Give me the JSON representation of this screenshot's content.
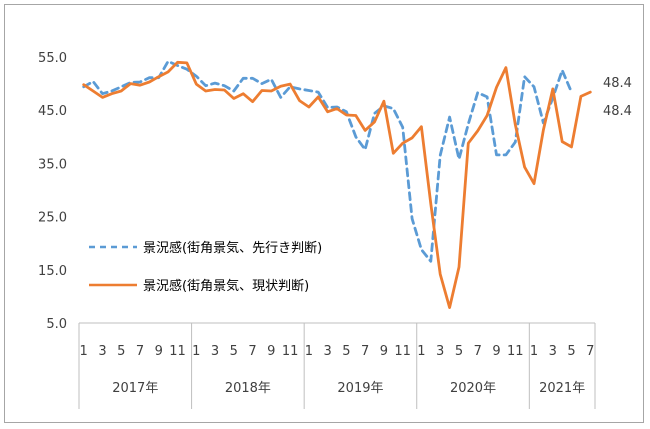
{
  "chart_data": {
    "type": "line",
    "title": "",
    "xlabel": "",
    "ylabel": "",
    "ylim": [
      5.0,
      55.0
    ],
    "yticks": [
      "5.0",
      "15.0",
      "25.0",
      "35.0",
      "45.0",
      "55.0"
    ],
    "grid": false,
    "legend_position": "lower-left",
    "x_month_labels": [
      "1",
      "3",
      "5",
      "7",
      "9",
      "11",
      "1",
      "3",
      "5",
      "7",
      "9",
      "11",
      "1",
      "3",
      "5",
      "7",
      "9",
      "11",
      "1",
      "3",
      "5",
      "7",
      "9",
      "11",
      "1",
      "3",
      "5",
      "7"
    ],
    "x_month_label_values": [
      1,
      3,
      5,
      7,
      9,
      11,
      13,
      15,
      17,
      19,
      21,
      23,
      25,
      27,
      29,
      31,
      33,
      35,
      37,
      39,
      41,
      43,
      45,
      47,
      49,
      51,
      53,
      55
    ],
    "year_labels": [
      "2017年",
      "2018年",
      "2019年",
      "2020年",
      "2021年"
    ],
    "year_spans": [
      [
        1,
        12
      ],
      [
        13,
        24
      ],
      [
        25,
        36
      ],
      [
        37,
        48
      ],
      [
        49,
        55
      ]
    ],
    "series": [
      {
        "name": "景況感(街角景気、先行き判断)",
        "color": "#5b9bd5",
        "dash": true,
        "values": [
          49.4,
          50.4,
          48.1,
          48.6,
          49.4,
          50.2,
          50.3,
          51.1,
          51.1,
          54.2,
          53.4,
          52.7,
          51.4,
          49.6,
          50.1,
          49.6,
          48.6,
          51.0,
          51.0,
          50.0,
          50.8,
          47.4,
          49.4,
          49.0,
          48.7,
          48.4,
          45.5,
          45.6,
          44.7,
          40.0,
          37.6,
          44.4,
          45.8,
          45.3,
          41.8,
          24.6,
          18.8,
          16.6,
          36.5,
          43.7,
          35.8,
          42.4,
          48.3,
          47.5,
          36.6,
          36.6,
          39.0,
          51.3,
          49.4,
          42.6,
          47.3,
          52.5,
          48.4
        ],
        "end_label": "48.4"
      },
      {
        "name": "景況感(街角景気、現状判断)",
        "color": "#ed7d31",
        "dash": false,
        "values": [
          49.8,
          48.6,
          47.4,
          48.1,
          48.6,
          50.0,
          49.7,
          50.3,
          51.3,
          52.2,
          54.0,
          53.9,
          49.9,
          48.6,
          48.9,
          48.8,
          47.2,
          48.1,
          46.6,
          48.7,
          48.6,
          49.5,
          49.9,
          46.8,
          45.6,
          47.5,
          44.7,
          45.3,
          44.1,
          44.0,
          41.2,
          42.8,
          46.7,
          36.9,
          38.8,
          39.8,
          41.9,
          27.4,
          14.2,
          7.9,
          15.5,
          38.8,
          41.1,
          44.0,
          49.3,
          53.0,
          42.3,
          34.3,
          31.2,
          41.3,
          49.0,
          39.1,
          38.1,
          47.6,
          48.4
        ],
        "end_label": "48.4"
      }
    ]
  }
}
